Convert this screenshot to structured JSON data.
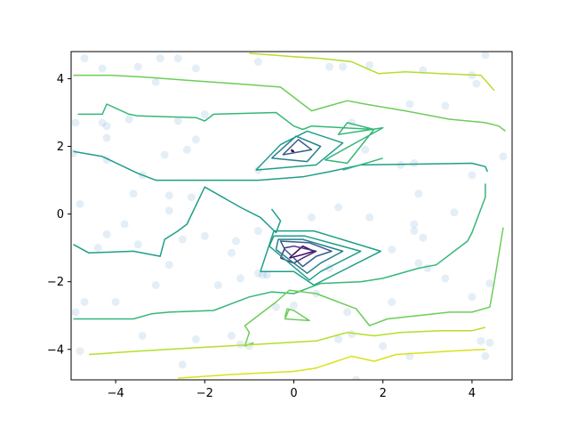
{
  "chart_data": {
    "type": "scatter",
    "subtype": "contour-with-scatter",
    "title": "",
    "xlabel": "",
    "ylabel": "",
    "xlim": [
      -5,
      4.9
    ],
    "ylim": [
      -4.9,
      4.8
    ],
    "x_ticks": [
      -4,
      -2,
      0,
      2,
      4
    ],
    "y_ticks": [
      -4,
      -2,
      0,
      2,
      4
    ],
    "x_tick_labels": [
      "−4",
      "−2",
      "0",
      "2",
      "4"
    ],
    "y_tick_labels": [
      "−4",
      "−2",
      "0",
      "2",
      "4"
    ],
    "grid": false,
    "scatter_color": "#1f77b4",
    "scatter_alpha": 0.12,
    "points": [
      [
        -4.7,
        4.6
      ],
      [
        -4.3,
        4.3
      ],
      [
        -3.5,
        4.35
      ],
      [
        -3.1,
        3.9
      ],
      [
        -3.0,
        4.6
      ],
      [
        -2.6,
        4.6
      ],
      [
        -2.2,
        4.3
      ],
      [
        -0.8,
        4.5
      ],
      [
        0.8,
        4.35
      ],
      [
        1.1,
        4.35
      ],
      [
        1.7,
        4.4
      ],
      [
        2.9,
        4.25
      ],
      [
        4.0,
        4.1
      ],
      [
        4.1,
        3.85
      ],
      [
        4.3,
        4.7
      ],
      [
        -4.9,
        2.7
      ],
      [
        -4.3,
        2.7
      ],
      [
        -4.2,
        2.6
      ],
      [
        -4.2,
        2.25
      ],
      [
        -3.7,
        2.8
      ],
      [
        -2.6,
        2.75
      ],
      [
        -2.2,
        2.2
      ],
      [
        -2.0,
        2.95
      ],
      [
        -0.8,
        1.3
      ],
      [
        1.3,
        2.7
      ],
      [
        1.6,
        1.9
      ],
      [
        2.6,
        3.25
      ],
      [
        2.4,
        1.45
      ],
      [
        2.7,
        1.5
      ],
      [
        3.4,
        3.2
      ],
      [
        -4.95,
        1.8
      ],
      [
        -4.2,
        1.6
      ],
      [
        -3.4,
        1.15
      ],
      [
        -2.9,
        1.75
      ],
      [
        -2.4,
        1.9
      ],
      [
        4.0,
        1.15
      ],
      [
        4.7,
        1.7
      ],
      [
        -4.8,
        0.3
      ],
      [
        -3.6,
        0.6
      ],
      [
        -2.8,
        0.55
      ],
      [
        -2.8,
        0.1
      ],
      [
        -2.3,
        0.5
      ],
      [
        0.4,
        -0.1
      ],
      [
        1.0,
        0.2
      ],
      [
        1.7,
        -0.1
      ],
      [
        2.8,
        0.6
      ],
      [
        2.7,
        -0.3
      ],
      [
        2.7,
        -0.5
      ],
      [
        3.6,
        0.05
      ],
      [
        -0.8,
        -0.5
      ],
      [
        -3.8,
        -0.3
      ],
      [
        -4.2,
        -0.6
      ],
      [
        -3.5,
        -0.9
      ],
      [
        -2.8,
        -1.5
      ],
      [
        -2.5,
        -0.75
      ],
      [
        -2.0,
        -0.65
      ],
      [
        -1.3,
        -0.8
      ],
      [
        -1.4,
        -1.15
      ],
      [
        -0.8,
        -1.75
      ],
      [
        -0.7,
        -1.8
      ],
      [
        -0.6,
        -1.8
      ],
      [
        2.2,
        -1.05
      ],
      [
        2.9,
        -0.7
      ],
      [
        2.8,
        -1.45
      ],
      [
        3.0,
        -1.6
      ],
      [
        3.4,
        -1.9
      ],
      [
        -4.4,
        -1.0
      ],
      [
        0.8,
        -1.6
      ],
      [
        -4.7,
        -2.6
      ],
      [
        -4.0,
        -2.6
      ],
      [
        -3.1,
        -2.1
      ],
      [
        -1.7,
        -2.1
      ],
      [
        -1.2,
        -1.9
      ],
      [
        0.5,
        -2.35
      ],
      [
        1.2,
        -2.9
      ],
      [
        2.2,
        -2.6
      ],
      [
        4.0,
        -2.45
      ],
      [
        4.4,
        -2.05
      ],
      [
        -4.9,
        -2.9
      ],
      [
        0.0,
        -2.7
      ],
      [
        -3.4,
        -3.6
      ],
      [
        -2.5,
        -4.45
      ],
      [
        -2.2,
        -3.7
      ],
      [
        -1.4,
        -3.6
      ],
      [
        -1.2,
        -3.85
      ],
      [
        -1.0,
        -3.9
      ],
      [
        1.0,
        -3.7
      ],
      [
        1.3,
        -3.55
      ],
      [
        2.0,
        -3.9
      ],
      [
        2.6,
        -4.2
      ],
      [
        4.2,
        -3.75
      ],
      [
        4.4,
        -3.8
      ],
      [
        4.3,
        -4.2
      ],
      [
        1.4,
        -4.9
      ],
      [
        -4.8,
        -4.05
      ],
      [
        -0.4,
        -2.75
      ]
    ],
    "contour_levels": [
      {
        "color": "#440154",
        "paths": [
          [
            [
              -0.1,
              -1.3
            ],
            [
              0.2,
              -0.95
            ],
            [
              0.45,
              -1.1
            ],
            [
              0.2,
              -1.2
            ],
            [
              -0.1,
              -1.3
            ]
          ],
          [
            [
              -0.05,
              1.85
            ],
            [
              -0.05,
              1.9
            ],
            [
              0.0,
              1.85
            ],
            [
              -0.05,
              1.85
            ]
          ]
        ]
      },
      {
        "color": "#46327e",
        "paths": [
          [
            [
              -0.3,
              -1.3
            ],
            [
              -0.2,
              -1.0
            ],
            [
              0.0,
              -0.95
            ],
            [
              0.5,
              -1.1
            ],
            [
              0.2,
              -1.3
            ],
            [
              0.0,
              -1.45
            ],
            [
              -0.3,
              -1.3
            ]
          ]
        ]
      },
      {
        "color": "#365c8d",
        "paths": [
          [
            [
              -0.2,
              -1.05
            ],
            [
              -0.3,
              -0.8
            ],
            [
              0.35,
              -0.85
            ],
            [
              0.85,
              -1.1
            ],
            [
              0.5,
              -1.25
            ],
            [
              0.2,
              -1.55
            ],
            [
              -0.2,
              -1.05
            ]
          ],
          [
            [
              -0.25,
              1.75
            ],
            [
              0.1,
              2.2
            ],
            [
              0.4,
              1.9
            ],
            [
              -0.25,
              1.75
            ]
          ]
        ]
      },
      {
        "color": "#277f8e",
        "paths": [
          [
            [
              -0.4,
              -1.05
            ],
            [
              -0.35,
              -0.75
            ],
            [
              0.2,
              -0.75
            ],
            [
              1.1,
              -1.1
            ],
            [
              0.6,
              -1.45
            ],
            [
              0.3,
              -1.75
            ],
            [
              -0.4,
              -1.05
            ]
          ],
          [
            [
              -0.5,
              1.65
            ],
            [
              0.05,
              2.3
            ],
            [
              0.6,
              2.0
            ],
            [
              0.3,
              1.55
            ],
            [
              -0.5,
              1.65
            ]
          ]
        ]
      },
      {
        "color": "#1f9e89",
        "paths": [
          [
            [
              -0.55,
              -0.95
            ],
            [
              -0.45,
              -0.65
            ],
            [
              0.25,
              -0.65
            ],
            [
              1.5,
              -1.1
            ],
            [
              0.6,
              -1.7
            ],
            [
              0.35,
              -1.95
            ],
            [
              -0.55,
              -0.95
            ]
          ],
          [
            [
              -0.85,
              1.3
            ],
            [
              -0.3,
              2.05
            ],
            [
              0.3,
              2.45
            ],
            [
              1.1,
              2.1
            ],
            [
              0.5,
              1.45
            ],
            [
              -0.85,
              1.3
            ]
          ],
          [
            [
              -4.95,
              -0.9
            ],
            [
              -4.6,
              -1.15
            ],
            [
              -3.6,
              -1.1
            ],
            [
              -3.0,
              -1.25
            ],
            [
              -2.9,
              -0.75
            ],
            [
              -2.6,
              -0.5
            ],
            [
              -2.4,
              -0.3
            ],
            [
              -2.0,
              0.8
            ],
            [
              -1.2,
              0.2
            ],
            [
              -0.75,
              -0.1
            ],
            [
              -0.4,
              -0.55
            ],
            [
              -0.3,
              -0.2
            ],
            [
              -0.5,
              0.15
            ]
          ],
          [
            [
              -0.75,
              -1.7
            ],
            [
              -0.45,
              -0.5
            ],
            [
              0.45,
              -0.5
            ],
            [
              1.95,
              -1.1
            ],
            [
              0.45,
              -2.1
            ],
            [
              0.0,
              -1.7
            ],
            [
              -0.75,
              -1.7
            ]
          ],
          [
            [
              -4.95,
              1.85
            ],
            [
              -4.3,
              1.7
            ],
            [
              -3.5,
              1.2
            ],
            [
              -3.1,
              1.0
            ],
            [
              -2.5,
              1.0
            ],
            [
              -0.8,
              1.0
            ],
            [
              0.2,
              1.1
            ],
            [
              0.8,
              1.25
            ],
            [
              1.5,
              1.45
            ],
            [
              4.0,
              1.5
            ],
            [
              4.3,
              1.4
            ],
            [
              4.35,
              1.25
            ]
          ]
        ]
      },
      {
        "color": "#35b779",
        "paths": [
          [
            [
              -4.85,
              2.95
            ],
            [
              -4.3,
              2.95
            ],
            [
              -4.2,
              3.25
            ],
            [
              -3.7,
              2.95
            ],
            [
              -3.5,
              2.9
            ],
            [
              -2.2,
              2.85
            ],
            [
              -2.0,
              2.75
            ],
            [
              -1.8,
              2.95
            ],
            [
              -0.4,
              3.0
            ],
            [
              0.0,
              2.6
            ],
            [
              0.2,
              2.5
            ],
            [
              0.4,
              2.6
            ],
            [
              1.8,
              2.5
            ],
            [
              1.2,
              1.5
            ],
            [
              0.7,
              1.6
            ],
            [
              2.0,
              2.55
            ],
            [
              1.0,
              2.35
            ],
            [
              1.2,
              2.7
            ],
            [
              1.8,
              2.5
            ]
          ],
          [
            [
              -4.95,
              -3.1
            ],
            [
              -4.3,
              -3.1
            ],
            [
              -3.6,
              -3.1
            ],
            [
              -3.2,
              -2.95
            ],
            [
              -2.8,
              -2.9
            ],
            [
              -1.8,
              -2.85
            ],
            [
              -1.0,
              -2.45
            ],
            [
              -0.5,
              -2.3
            ],
            [
              0.0,
              -2.35
            ],
            [
              0.6,
              -2.05
            ],
            [
              1.5,
              -2.0
            ],
            [
              2.0,
              -1.9
            ],
            [
              2.8,
              -1.6
            ],
            [
              3.2,
              -1.5
            ],
            [
              3.9,
              -0.8
            ],
            [
              4.0,
              -0.55
            ],
            [
              4.3,
              0.5
            ],
            [
              4.3,
              0.9
            ]
          ],
          [
            [
              1.1,
              1.3
            ],
            [
              2.0,
              1.65
            ]
          ]
        ]
      },
      {
        "color": "#6ccd5a",
        "paths": [
          [
            [
              -4.95,
              4.1
            ],
            [
              -4.6,
              4.1
            ],
            [
              -4.1,
              4.1
            ],
            [
              -3.4,
              4.05
            ],
            [
              -2.4,
              3.95
            ],
            [
              -1.3,
              3.85
            ],
            [
              -0.3,
              3.75
            ],
            [
              0.4,
              3.05
            ],
            [
              0.8,
              3.2
            ],
            [
              1.2,
              3.35
            ],
            [
              1.6,
              3.25
            ],
            [
              2.5,
              3.05
            ],
            [
              3.5,
              2.8
            ],
            [
              4.3,
              2.7
            ],
            [
              4.6,
              2.6
            ],
            [
              4.75,
              2.45
            ]
          ],
          [
            [
              -0.9,
              -3.8
            ],
            [
              -1.1,
              -3.9
            ],
            [
              -1.0,
              -3.5
            ],
            [
              -1.1,
              -3.3
            ],
            [
              -0.4,
              -2.6
            ],
            [
              -0.1,
              -2.25
            ],
            [
              0.5,
              -2.35
            ],
            [
              1.0,
              -2.6
            ],
            [
              1.4,
              -2.8
            ],
            [
              1.7,
              -3.3
            ],
            [
              2.1,
              -3.1
            ],
            [
              3.5,
              -2.9
            ],
            [
              4.0,
              -2.9
            ],
            [
              4.4,
              -2.75
            ],
            [
              4.5,
              -2.0
            ],
            [
              4.7,
              -0.4
            ]
          ],
          [
            [
              -0.1,
              -2.8
            ],
            [
              -0.2,
              -3.1
            ],
            [
              0.35,
              -3.15
            ],
            [
              0.0,
              -2.85
            ],
            [
              -0.15,
              -2.8
            ],
            [
              -0.2,
              -3.05
            ]
          ]
        ]
      },
      {
        "color": "#b5de2b",
        "paths": [
          [
            [
              -1.0,
              4.75
            ],
            [
              0.0,
              4.65
            ],
            [
              0.6,
              4.6
            ],
            [
              1.3,
              4.5
            ],
            [
              1.9,
              4.15
            ],
            [
              2.5,
              4.2
            ],
            [
              3.3,
              4.15
            ],
            [
              4.2,
              4.1
            ],
            [
              4.5,
              3.65
            ]
          ],
          [
            [
              -4.6,
              -4.15
            ],
            [
              -3.5,
              -4.05
            ],
            [
              -2.2,
              -3.95
            ],
            [
              -1.5,
              -3.9
            ],
            [
              0.5,
              -3.75
            ],
            [
              1.2,
              -3.5
            ],
            [
              1.8,
              -3.6
            ],
            [
              2.4,
              -3.5
            ],
            [
              3.3,
              -3.45
            ],
            [
              4.0,
              -3.45
            ],
            [
              4.3,
              -3.35
            ]
          ]
        ]
      },
      {
        "color": "#d8e219",
        "paths": [
          [
            [
              -2.6,
              -4.85
            ],
            [
              -1.5,
              -4.75
            ],
            [
              0.0,
              -4.65
            ],
            [
              0.5,
              -4.55
            ],
            [
              1.3,
              -4.2
            ],
            [
              1.8,
              -4.35
            ],
            [
              2.3,
              -4.15
            ],
            [
              3.5,
              -4.05
            ],
            [
              4.3,
              -4.0
            ]
          ]
        ]
      }
    ]
  }
}
